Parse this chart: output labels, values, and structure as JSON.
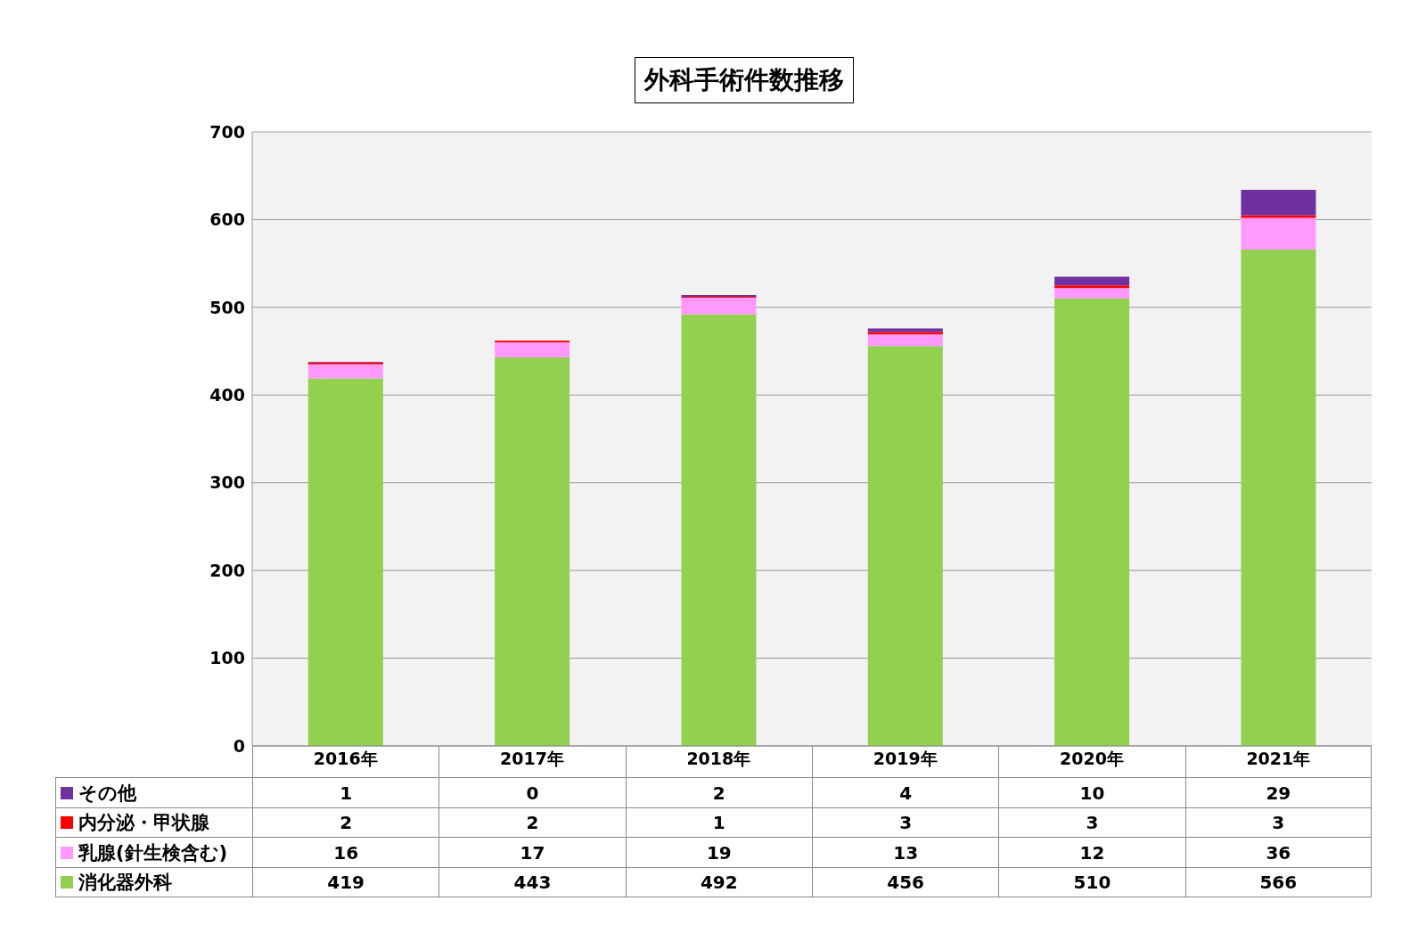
{
  "chart_data": {
    "type": "bar",
    "title": "外科手術件数推移",
    "categories": [
      "2016年",
      "2017年",
      "2018年",
      "2019年",
      "2020年",
      "2021年"
    ],
    "stacked": true,
    "series": [
      {
        "name": "消化器外科",
        "color": "#92d050",
        "values": [
          419,
          443,
          492,
          456,
          510,
          566
        ]
      },
      {
        "name": "乳腺(針生検含む)",
        "color": "#ff99ff",
        "values": [
          16,
          17,
          19,
          13,
          12,
          36
        ]
      },
      {
        "name": "内分泌・甲状腺",
        "color": "#ff0000",
        "values": [
          2,
          2,
          1,
          3,
          3,
          3
        ]
      },
      {
        "name": "その他",
        "color": "#7030a0",
        "values": [
          1,
          0,
          2,
          4,
          10,
          29
        ]
      }
    ],
    "ylim": [
      0,
      700
    ],
    "yticks": [
      0,
      100,
      200,
      300,
      400,
      500,
      600,
      700
    ],
    "grid": "y",
    "legend": "bottom",
    "data_labels": true
  }
}
